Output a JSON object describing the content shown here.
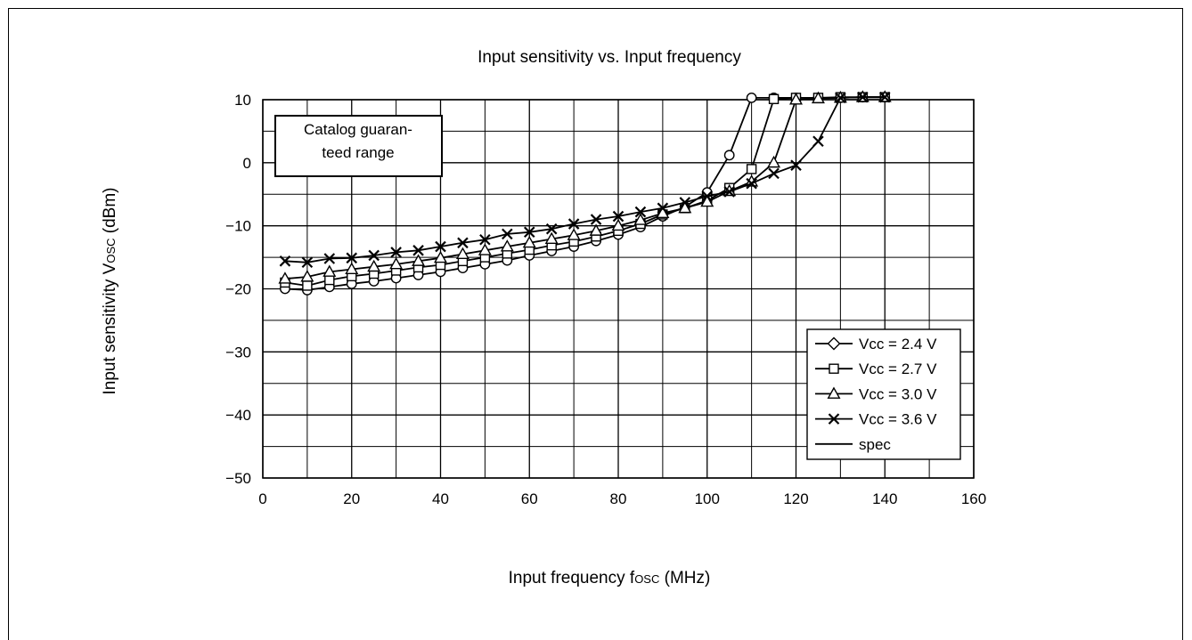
{
  "chart_data": {
    "type": "line",
    "title": "Input sensitivity vs. Input frequency",
    "xlabel": {
      "main": "Input frequency f",
      "sub": "OSC",
      "unit": " (MHz)"
    },
    "ylabel": {
      "main": "Input sensitivity V",
      "sub": "OSC",
      "unit": " (dBm)"
    },
    "xlim": [
      0,
      160
    ],
    "ylim": [
      -50,
      10
    ],
    "x_ticks": [
      "0",
      "20",
      "40",
      "60",
      "80",
      "100",
      "120",
      "140",
      "160"
    ],
    "y_ticks": [
      "10",
      "0",
      "−10",
      "−20",
      "−30",
      "−40",
      "−50"
    ],
    "grid": true,
    "annotation": {
      "lines": [
        "Catalog guaran-",
        "teed range"
      ]
    },
    "legend_position": "bottom-right",
    "series": [
      {
        "name": "Vcc = 2.4 V",
        "marker": "circle",
        "x": [
          5,
          10,
          15,
          20,
          25,
          30,
          35,
          40,
          45,
          50,
          55,
          60,
          65,
          70,
          75,
          80,
          85,
          90,
          95,
          100,
          105,
          110,
          115,
          120,
          125,
          130,
          135,
          140
        ],
        "y": [
          -20,
          -20.2,
          -19.7,
          -19.2,
          -18.8,
          -18.3,
          -17.8,
          -17.3,
          -16.7,
          -16.1,
          -15.5,
          -14.7,
          -14,
          -13.3,
          -12.4,
          -11.4,
          -10.2,
          -8.5,
          -7,
          -4.7,
          1.2,
          10.3,
          10.3,
          10.3,
          10.3,
          10.3,
          10.4,
          10.4
        ]
      },
      {
        "name": "Vcc = 2.7 V",
        "marker": "square",
        "x": [
          5,
          10,
          15,
          20,
          25,
          30,
          35,
          40,
          45,
          50,
          55,
          60,
          65,
          70,
          75,
          80,
          85,
          90,
          95,
          100,
          105,
          110,
          115,
          120,
          125,
          130,
          135,
          140
        ],
        "y": [
          -19,
          -19.5,
          -18.6,
          -18,
          -17.6,
          -17.1,
          -16.6,
          -16.2,
          -15.6,
          -15,
          -14.4,
          -13.8,
          -13.1,
          -12.5,
          -11.7,
          -10.8,
          -9.7,
          -8.2,
          -7.2,
          -6,
          -4,
          -1,
          10.1,
          10.3,
          10.3,
          10.4,
          10.4,
          10.4
        ]
      },
      {
        "name": "Vcc = 3.0 V",
        "marker": "triangle",
        "x": [
          5,
          10,
          15,
          20,
          25,
          30,
          35,
          40,
          45,
          50,
          55,
          60,
          65,
          70,
          75,
          80,
          85,
          90,
          95,
          100,
          105,
          110,
          115,
          120,
          125,
          130,
          135,
          140
        ],
        "y": [
          -18.4,
          -18.1,
          -17.3,
          -16.9,
          -16.5,
          -16.1,
          -15.6,
          -15.1,
          -14.5,
          -13.9,
          -13.3,
          -12.7,
          -12.1,
          -11.5,
          -10.8,
          -10,
          -9.1,
          -8,
          -7.2,
          -6.2,
          -4.5,
          -3,
          0,
          10,
          10.2,
          10.3,
          10.4,
          10.4
        ]
      },
      {
        "name": "Vcc = 3.6 V",
        "marker": "x",
        "x": [
          5,
          10,
          15,
          20,
          25,
          30,
          35,
          40,
          45,
          50,
          55,
          60,
          65,
          70,
          75,
          80,
          85,
          90,
          95,
          100,
          105,
          110,
          115,
          120,
          125,
          130,
          135,
          140
        ],
        "y": [
          -15.6,
          -15.8,
          -15.2,
          -15.1,
          -14.7,
          -14.2,
          -13.9,
          -13.3,
          -12.7,
          -12.2,
          -11.3,
          -11,
          -10.5,
          -9.7,
          -9,
          -8.5,
          -7.8,
          -7.2,
          -6.3,
          -5.3,
          -4.6,
          -3.3,
          -1.7,
          -0.4,
          3.4,
          10.3,
          10.4,
          10.4
        ]
      }
    ],
    "spec": {
      "name": "spec"
    }
  }
}
